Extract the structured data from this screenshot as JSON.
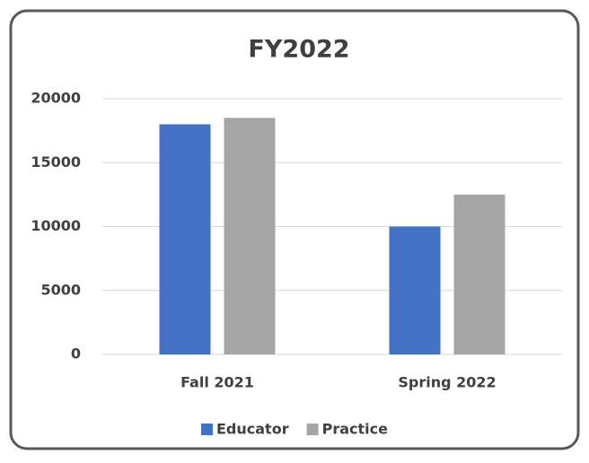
{
  "chart_data": {
    "type": "bar",
    "title": "FY2022",
    "categories": [
      "Fall 2021",
      "Spring 2022"
    ],
    "series": [
      {
        "name": "Educator",
        "color": "#4472c4",
        "values": [
          18000,
          10000
        ]
      },
      {
        "name": "Practice",
        "color": "#a5a5a5",
        "values": [
          18500,
          12500
        ]
      }
    ],
    "ylim": [
      0,
      20000
    ],
    "yticks": [
      0,
      5000,
      10000,
      15000,
      20000
    ],
    "grid": true,
    "legend": "bottom"
  }
}
